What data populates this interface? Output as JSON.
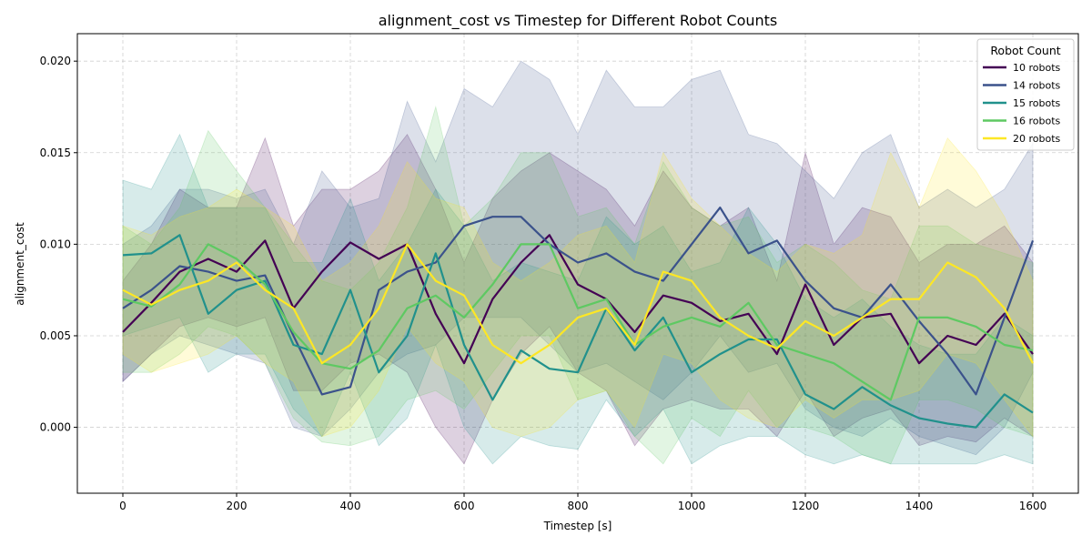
{
  "chart_data": {
    "type": "line",
    "title": "alignment_cost vs Timestep for Different Robot Counts",
    "xlabel": "Timestep [s]",
    "ylabel": "alignment_cost",
    "xlim": [
      -80,
      1680
    ],
    "ylim": [
      -0.0036,
      0.0215
    ],
    "xticks": [
      0,
      200,
      400,
      600,
      800,
      1000,
      1200,
      1400,
      1600
    ],
    "xtick_labels": [
      "0",
      "200",
      "400",
      "600",
      "800",
      "1000",
      "1200",
      "1400",
      "1600"
    ],
    "yticks": [
      0.0,
      0.005,
      0.01,
      0.015,
      0.02
    ],
    "ytick_labels": [
      "0.000",
      "0.005",
      "0.010",
      "0.015",
      "0.020"
    ],
    "grid": true,
    "legend": {
      "title": "Robot Count",
      "placement": "top-right"
    },
    "x": [
      0,
      50,
      100,
      150,
      200,
      250,
      300,
      350,
      400,
      450,
      500,
      550,
      600,
      650,
      700,
      750,
      800,
      850,
      900,
      950,
      1000,
      1050,
      1100,
      1150,
      1200,
      1250,
      1300,
      1350,
      1400,
      1450,
      1500,
      1550,
      1600
    ],
    "series": [
      {
        "name": "10 robots",
        "color": "#440154",
        "values": [
          0.0052,
          0.0068,
          0.0085,
          0.0092,
          0.0085,
          0.0102,
          0.0065,
          0.0085,
          0.0101,
          0.0092,
          0.01,
          0.0062,
          0.0035,
          0.007,
          0.009,
          0.0105,
          0.0078,
          0.007,
          0.0052,
          0.0072,
          0.0068,
          0.0058,
          0.0062,
          0.004,
          0.0078,
          0.0045,
          0.006,
          0.0062,
          0.0035,
          0.005,
          0.0045,
          0.0062,
          0.004
        ],
        "band_low": [
          0.0025,
          0.004,
          0.0055,
          0.006,
          0.0055,
          0.006,
          0.002,
          0.002,
          0.0035,
          0.004,
          0.003,
          0.0,
          -0.002,
          0.0015,
          0.004,
          0.0055,
          0.003,
          0.002,
          -0.001,
          0.001,
          0.0015,
          0.001,
          0.001,
          -0.0005,
          0.002,
          -0.0005,
          0.0005,
          0.001,
          -0.001,
          -0.0005,
          -0.0008,
          0.0005,
          -0.0005
        ],
        "band_high": [
          0.008,
          0.01,
          0.013,
          0.012,
          0.012,
          0.0158,
          0.011,
          0.013,
          0.013,
          0.014,
          0.016,
          0.013,
          0.009,
          0.0125,
          0.014,
          0.015,
          0.014,
          0.013,
          0.011,
          0.014,
          0.012,
          0.011,
          0.012,
          0.008,
          0.015,
          0.01,
          0.012,
          0.0115,
          0.009,
          0.01,
          0.01,
          0.011,
          0.009
        ]
      },
      {
        "name": "14 robots",
        "color": "#3b528b",
        "values": [
          0.0065,
          0.0075,
          0.0088,
          0.0085,
          0.008,
          0.0083,
          0.005,
          0.0018,
          0.0022,
          0.0075,
          0.0085,
          0.009,
          0.011,
          0.0115,
          0.0115,
          0.01,
          0.009,
          0.0095,
          0.0085,
          0.008,
          0.01,
          0.012,
          0.0095,
          0.0102,
          0.008,
          0.0065,
          0.006,
          0.0078,
          0.0058,
          0.004,
          0.0018,
          0.006,
          0.0102
        ],
        "band_low": [
          0.0025,
          0.004,
          0.005,
          0.0045,
          0.004,
          0.0035,
          0.0,
          -0.0005,
          0.001,
          0.003,
          0.004,
          0.0045,
          0.006,
          0.006,
          0.006,
          0.0045,
          0.003,
          0.0035,
          0.0025,
          0.0015,
          0.003,
          0.005,
          0.003,
          0.0035,
          0.001,
          0.0,
          -0.0005,
          0.0005,
          -0.0005,
          -0.001,
          -0.0015,
          0.0,
          0.003
        ],
        "band_high": [
          0.01,
          0.011,
          0.013,
          0.013,
          0.0125,
          0.013,
          0.01,
          0.014,
          0.012,
          0.0125,
          0.0178,
          0.0145,
          0.0185,
          0.0175,
          0.02,
          0.019,
          0.016,
          0.0195,
          0.0175,
          0.0175,
          0.019,
          0.0195,
          0.016,
          0.0155,
          0.014,
          0.0125,
          0.015,
          0.016,
          0.012,
          0.013,
          0.012,
          0.013,
          0.0155
        ]
      },
      {
        "name": "15 robots",
        "color": "#21918c",
        "values": [
          0.0094,
          0.0095,
          0.0105,
          0.0062,
          0.0075,
          0.008,
          0.0045,
          0.004,
          0.0075,
          0.003,
          0.005,
          0.0095,
          0.0045,
          0.0015,
          0.0042,
          0.0032,
          0.003,
          0.0065,
          0.0042,
          0.006,
          0.003,
          0.004,
          0.0048,
          0.0048,
          0.0018,
          0.001,
          0.0022,
          0.0012,
          0.0005,
          0.0002,
          0.0,
          0.0018,
          0.0008
        ],
        "band_low": [
          0.005,
          0.0055,
          0.006,
          0.003,
          0.004,
          0.004,
          0.001,
          -0.0005,
          0.003,
          -0.001,
          0.0005,
          0.0045,
          0.0,
          -0.002,
          -0.0005,
          -0.001,
          -0.0012,
          0.0015,
          -0.0005,
          0.001,
          -0.002,
          -0.001,
          -0.0005,
          -0.0005,
          -0.0015,
          -0.002,
          -0.0015,
          -0.002,
          -0.002,
          -0.002,
          -0.002,
          -0.0015,
          -0.002
        ],
        "band_high": [
          0.0135,
          0.013,
          0.016,
          0.012,
          0.012,
          0.012,
          0.009,
          0.009,
          0.0125,
          0.008,
          0.01,
          0.013,
          0.011,
          0.008,
          0.009,
          0.0085,
          0.008,
          0.0115,
          0.01,
          0.011,
          0.0085,
          0.009,
          0.012,
          0.01,
          0.007,
          0.006,
          0.007,
          0.0055,
          0.0045,
          0.004,
          0.004,
          0.006,
          0.005
        ]
      },
      {
        "name": "16 robots",
        "color": "#5ec962",
        "values": [
          0.007,
          0.0066,
          0.0078,
          0.01,
          0.0092,
          0.0078,
          0.0052,
          0.0035,
          0.0032,
          0.0042,
          0.0065,
          0.0072,
          0.006,
          0.0078,
          0.01,
          0.01,
          0.0065,
          0.007,
          0.0045,
          0.0055,
          0.006,
          0.0055,
          0.0068,
          0.0045,
          0.004,
          0.0035,
          0.0025,
          0.0015,
          0.006,
          0.006,
          0.0055,
          0.0045,
          0.0042
        ],
        "band_low": [
          0.003,
          0.003,
          0.004,
          0.0055,
          0.005,
          0.0035,
          0.0005,
          -0.0008,
          -0.001,
          -0.0005,
          0.0015,
          0.002,
          0.001,
          0.003,
          0.005,
          0.005,
          0.0015,
          0.002,
          -0.0005,
          -0.002,
          0.0005,
          -0.0005,
          0.002,
          0.0,
          0.0,
          -0.0005,
          -0.0015,
          -0.002,
          0.0015,
          0.0015,
          0.001,
          0.0,
          -0.0005
        ],
        "band_high": [
          0.011,
          0.01,
          0.012,
          0.0162,
          0.014,
          0.012,
          0.01,
          0.008,
          0.0075,
          0.009,
          0.012,
          0.0175,
          0.011,
          0.0125,
          0.015,
          0.015,
          0.0115,
          0.012,
          0.01,
          0.0145,
          0.012,
          0.011,
          0.0115,
          0.009,
          0.01,
          0.009,
          0.0075,
          0.007,
          0.011,
          0.011,
          0.01,
          0.0095,
          0.009
        ]
      },
      {
        "name": "20 robots",
        "color": "#fde725",
        "values": [
          0.0075,
          0.0067,
          0.0075,
          0.008,
          0.009,
          0.0075,
          0.0065,
          0.0035,
          0.0045,
          0.0065,
          0.01,
          0.008,
          0.0072,
          0.0045,
          0.0035,
          0.0045,
          0.006,
          0.0065,
          0.0045,
          0.0085,
          0.008,
          0.006,
          0.005,
          0.0043,
          0.0058,
          0.005,
          0.006,
          0.007,
          0.007,
          0.009,
          0.0082,
          0.0065,
          0.0035
        ],
        "band_low": [
          0.004,
          0.003,
          0.0035,
          0.004,
          0.005,
          0.0035,
          0.0025,
          -0.0005,
          0.0,
          0.002,
          0.0055,
          0.0035,
          0.0025,
          0.0,
          -0.0005,
          0.0,
          0.0015,
          0.002,
          0.0,
          0.004,
          0.0035,
          0.0015,
          0.0005,
          0.0,
          0.0015,
          0.0005,
          0.0015,
          0.0015,
          0.002,
          0.004,
          0.0035,
          0.0015,
          -0.0005
        ],
        "band_high": [
          0.011,
          0.0105,
          0.0115,
          0.012,
          0.013,
          0.012,
          0.011,
          0.008,
          0.009,
          0.011,
          0.0145,
          0.0125,
          0.012,
          0.009,
          0.008,
          0.009,
          0.0105,
          0.011,
          0.009,
          0.015,
          0.0125,
          0.011,
          0.0095,
          0.0085,
          0.01,
          0.0095,
          0.0105,
          0.015,
          0.012,
          0.0158,
          0.014,
          0.0115,
          0.008
        ]
      }
    ]
  }
}
